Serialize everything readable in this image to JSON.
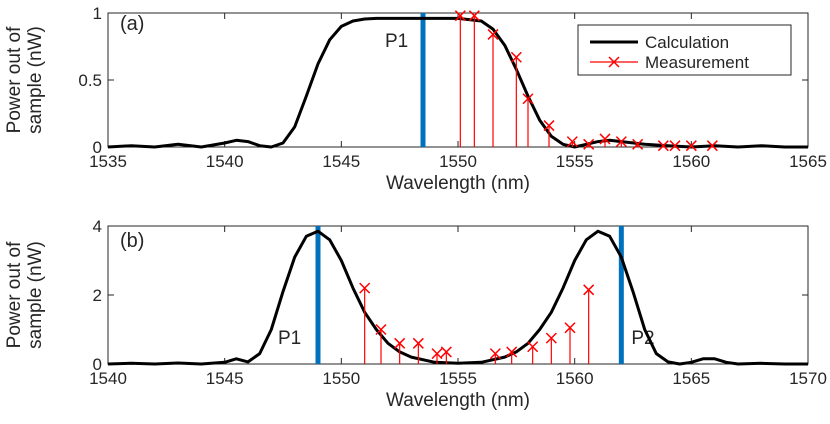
{
  "chart_data": [
    {
      "type": "line",
      "panel_label": "(a)",
      "xlabel": "Wavelength (nm)",
      "ylabel": [
        "Power out of",
        "sample (nW)"
      ],
      "xlim": [
        1535,
        1565
      ],
      "ylim": [
        0,
        1
      ],
      "xticks": [
        1535,
        1540,
        1545,
        1550,
        1555,
        1560,
        1565
      ],
      "xtick_labels": [
        "1535",
        "1540",
        "1545",
        "1550",
        "1555",
        "1560",
        "1565"
      ],
      "yticks": [
        0,
        0.5,
        1
      ],
      "ytick_labels": [
        "0",
        "0.5",
        "1"
      ],
      "legend": {
        "position": "top-right",
        "entries": [
          "Calculation",
          "Measurement"
        ]
      },
      "series": [
        {
          "name": "Calculation",
          "color": "#000000",
          "x": [
            1535,
            1536,
            1537,
            1538,
            1539,
            1540,
            1540.5,
            1541,
            1541.5,
            1542,
            1542.5,
            1543,
            1543.5,
            1544,
            1544.5,
            1545,
            1545.5,
            1546,
            1546.5,
            1547,
            1547.5,
            1548,
            1549,
            1550,
            1551,
            1551.5,
            1552,
            1552.5,
            1553,
            1553.5,
            1554,
            1554.5,
            1555,
            1555.5,
            1556,
            1556.5,
            1557,
            1558,
            1559,
            1560,
            1561,
            1562,
            1563,
            1564,
            1565
          ],
          "y": [
            0.0,
            0.01,
            0.0,
            0.02,
            0.0,
            0.03,
            0.05,
            0.04,
            0.01,
            0.0,
            0.03,
            0.15,
            0.38,
            0.62,
            0.8,
            0.9,
            0.94,
            0.955,
            0.96,
            0.96,
            0.96,
            0.96,
            0.96,
            0.96,
            0.94,
            0.88,
            0.76,
            0.58,
            0.38,
            0.2,
            0.08,
            0.02,
            0.0,
            0.02,
            0.04,
            0.05,
            0.04,
            0.02,
            0.01,
            0.0,
            0.01,
            0.0,
            0.01,
            0.0,
            0.0
          ]
        },
        {
          "name": "Measurement",
          "color": "#ff0000",
          "x": [
            1550.1,
            1550.7,
            1551.5,
            1552.5,
            1553.0,
            1553.9,
            1554.9,
            1555.6,
            1556.3,
            1557.0,
            1557.7,
            1558.8,
            1559.3,
            1560.0,
            1560.9
          ],
          "y": [
            0.98,
            0.98,
            0.84,
            0.67,
            0.36,
            0.16,
            0.04,
            0.02,
            0.06,
            0.04,
            0.02,
            0.01,
            0.01,
            0.01,
            0.01
          ]
        }
      ],
      "markers": [
        {
          "label": "P1",
          "x": 1548.5,
          "color": "#0072bd"
        }
      ]
    },
    {
      "type": "line",
      "panel_label": "(b)",
      "xlabel": "Wavelength (nm)",
      "ylabel": [
        "Power out of",
        "sample (nW)"
      ],
      "xlim": [
        1540,
        1570
      ],
      "ylim": [
        0,
        4
      ],
      "xticks": [
        1540,
        1545,
        1550,
        1555,
        1560,
        1565,
        1570
      ],
      "xtick_labels": [
        "1540",
        "1545",
        "1550",
        "1555",
        "1560",
        "1565",
        "1570"
      ],
      "yticks": [
        0,
        2,
        4
      ],
      "ytick_labels": [
        "0",
        "2",
        "4"
      ],
      "series": [
        {
          "name": "Calculation",
          "color": "#000000",
          "x": [
            1540,
            1541,
            1542,
            1543,
            1544,
            1545,
            1545.5,
            1546,
            1546.5,
            1547,
            1547.5,
            1548,
            1548.5,
            1549,
            1549.5,
            1550,
            1550.5,
            1551,
            1551.5,
            1552,
            1552.5,
            1553,
            1554,
            1555,
            1556,
            1557,
            1557.5,
            1558,
            1558.5,
            1559,
            1559.5,
            1560,
            1560.5,
            1561,
            1561.5,
            1562,
            1562.5,
            1563,
            1563.5,
            1564,
            1564.5,
            1565,
            1565.5,
            1566,
            1566.5,
            1567,
            1568,
            1569,
            1570
          ],
          "y": [
            0.0,
            0.02,
            0.0,
            0.03,
            0.0,
            0.05,
            0.15,
            0.06,
            0.3,
            1.0,
            2.1,
            3.1,
            3.7,
            3.85,
            3.6,
            3.0,
            2.2,
            1.5,
            1.0,
            0.6,
            0.35,
            0.2,
            0.05,
            0.02,
            0.05,
            0.2,
            0.35,
            0.6,
            1.0,
            1.5,
            2.2,
            3.0,
            3.6,
            3.85,
            3.7,
            3.1,
            2.1,
            1.0,
            0.3,
            0.06,
            0.0,
            0.05,
            0.15,
            0.15,
            0.05,
            0.0,
            0.02,
            0.0,
            0.0
          ]
        },
        {
          "name": "Measurement",
          "color": "#ff0000",
          "x": [
            1551.0,
            1551.7,
            1552.5,
            1553.3,
            1554.1,
            1554.5,
            1556.6,
            1557.3,
            1558.2,
            1559.0,
            1559.8,
            1560.6
          ],
          "y": [
            2.2,
            1.0,
            0.6,
            0.6,
            0.3,
            0.35,
            0.3,
            0.35,
            0.5,
            0.75,
            1.05,
            2.15
          ]
        }
      ],
      "markers": [
        {
          "label": "P1",
          "x": 1549.0,
          "color": "#0072bd"
        },
        {
          "label": "P2",
          "x": 1562.0,
          "color": "#0072bd"
        }
      ]
    }
  ]
}
